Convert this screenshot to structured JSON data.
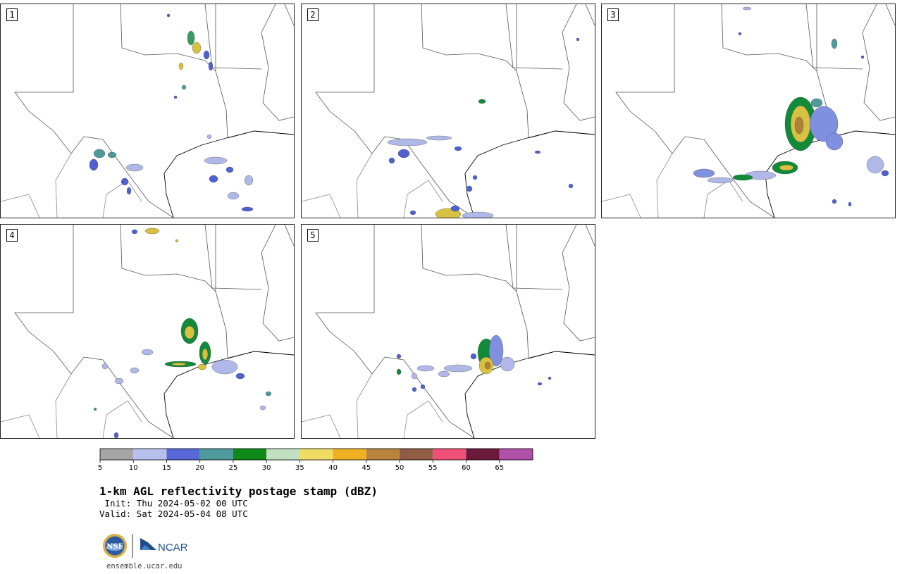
{
  "panels": [
    {
      "label": "1",
      "blobs": [
        [
          270,
          48,
          5,
          10,
          "#3a9a60"
        ],
        [
          278,
          62,
          6,
          8,
          "#d8c040"
        ],
        [
          292,
          72,
          4,
          6,
          "#5060d0"
        ],
        [
          256,
          88,
          3,
          5,
          "#d8c040"
        ],
        [
          298,
          88,
          3,
          6,
          "#5060d0"
        ],
        [
          260,
          118,
          3,
          3,
          "#4f9a98"
        ],
        [
          248,
          132,
          2,
          2,
          "#5060d0"
        ],
        [
          140,
          212,
          8,
          6,
          "#4f9a98"
        ],
        [
          132,
          228,
          6,
          8,
          "#5060d0"
        ],
        [
          158,
          214,
          6,
          4,
          "#4f9a98"
        ],
        [
          190,
          232,
          12,
          5,
          "#b0b8e8"
        ],
        [
          176,
          252,
          5,
          5,
          "#5060d0"
        ],
        [
          182,
          265,
          3,
          5,
          "#5060d0"
        ],
        [
          305,
          222,
          16,
          5,
          "#b0b8e8"
        ],
        [
          325,
          235,
          5,
          4,
          "#5060d0"
        ],
        [
          302,
          248,
          6,
          5,
          "#5060d0"
        ],
        [
          352,
          250,
          6,
          7,
          "#b0b8e8"
        ],
        [
          330,
          272,
          8,
          5,
          "#b0b8e8"
        ],
        [
          350,
          291,
          8,
          3,
          "#5060d0"
        ],
        [
          238,
          16,
          2,
          2,
          "#5060d0"
        ],
        [
          296,
          188,
          3,
          3,
          "#b0b8e8"
        ]
      ]
    },
    {
      "label": "2",
      "blobs": [
        [
          256,
          138,
          5,
          3,
          "#118a3a"
        ],
        [
          150,
          196,
          28,
          5,
          "#b0b8e8"
        ],
        [
          145,
          212,
          8,
          6,
          "#5060d0"
        ],
        [
          195,
          190,
          18,
          3,
          "#b0b8e8"
        ],
        [
          128,
          222,
          4,
          4,
          "#5060d0"
        ],
        [
          222,
          205,
          5,
          3,
          "#5060d0"
        ],
        [
          335,
          210,
          4,
          2,
          "#5060d0"
        ],
        [
          208,
          298,
          18,
          8,
          "#d8c040"
        ],
        [
          250,
          300,
          22,
          5,
          "#b0b8e8"
        ],
        [
          238,
          262,
          4,
          4,
          "#5060d0"
        ],
        [
          218,
          290,
          6,
          4,
          "#5060d0"
        ],
        [
          158,
          296,
          4,
          3,
          "#5060d0"
        ],
        [
          382,
          258,
          3,
          3,
          "#5060d0"
        ],
        [
          392,
          50,
          2,
          2,
          "#5060d0"
        ],
        [
          246,
          246,
          3,
          3,
          "#5060d0"
        ]
      ]
    },
    {
      "label": "3",
      "blobs": [
        [
          282,
          170,
          22,
          38,
          "#118a3a"
        ],
        [
          282,
          170,
          14,
          26,
          "#d8c040"
        ],
        [
          280,
          172,
          6,
          12,
          "#b0803a"
        ],
        [
          315,
          170,
          20,
          25,
          "#8090e0"
        ],
        [
          330,
          195,
          12,
          12,
          "#8090e0"
        ],
        [
          260,
          232,
          18,
          9,
          "#118a3a"
        ],
        [
          262,
          232,
          10,
          4,
          "#d8c040"
        ],
        [
          225,
          243,
          22,
          6,
          "#b0b8e8"
        ],
        [
          200,
          246,
          14,
          4,
          "#118a3a"
        ],
        [
          168,
          250,
          18,
          4,
          "#b0b8e8"
        ],
        [
          145,
          240,
          15,
          6,
          "#8090e0"
        ],
        [
          305,
          140,
          8,
          6,
          "#4f9a98"
        ],
        [
          330,
          56,
          4,
          7,
          "#4f9a98"
        ],
        [
          388,
          228,
          12,
          12,
          "#b0b8e8"
        ],
        [
          402,
          240,
          5,
          4,
          "#5060d0"
        ],
        [
          330,
          280,
          3,
          3,
          "#5060d0"
        ],
        [
          352,
          284,
          2,
          3,
          "#5060d0"
        ],
        [
          206,
          6,
          6,
          2,
          "#b0b8e8"
        ],
        [
          196,
          42,
          2,
          2,
          "#5060d0"
        ],
        [
          370,
          75,
          2,
          2,
          "#5060d0"
        ]
      ]
    },
    {
      "label": "4",
      "blobs": [
        [
          268,
          464,
          12,
          18,
          "#118a3a"
        ],
        [
          268,
          466,
          7,
          9,
          "#d8c040"
        ],
        [
          290,
          495,
          8,
          16,
          "#118a3a"
        ],
        [
          290,
          497,
          4,
          8,
          "#d8c040"
        ],
        [
          286,
          515,
          6,
          4,
          "#d8c040"
        ],
        [
          255,
          511,
          22,
          4,
          "#118a3a"
        ],
        [
          253,
          511,
          10,
          2,
          "#d8c040"
        ],
        [
          318,
          515,
          18,
          10,
          "#b0b8e8"
        ],
        [
          340,
          528,
          6,
          4,
          "#5060d0"
        ],
        [
          208,
          494,
          8,
          4,
          "#b0b8e8"
        ],
        [
          190,
          520,
          6,
          4,
          "#b0b8e8"
        ],
        [
          168,
          535,
          6,
          4,
          "#b0b8e8"
        ],
        [
          148,
          514,
          4,
          4,
          "#b0b8e8"
        ],
        [
          380,
          553,
          4,
          3,
          "#4f9a98"
        ],
        [
          372,
          573,
          4,
          3,
          "#b0b8e8"
        ],
        [
          215,
          322,
          10,
          4,
          "#d8c040"
        ],
        [
          190,
          323,
          4,
          3,
          "#5060d0"
        ],
        [
          164,
          612,
          3,
          4,
          "#5060d0"
        ],
        [
          134,
          575,
          2,
          2,
          "#4f9a98"
        ],
        [
          250,
          336,
          2,
          2,
          "#d8c040"
        ]
      ]
    },
    {
      "label": "5",
      "blobs": [
        [
          262,
          495,
          12,
          20,
          "#118a3a"
        ],
        [
          276,
          492,
          10,
          22,
          "#8090e0"
        ],
        [
          262,
          513,
          10,
          12,
          "#d8c040"
        ],
        [
          264,
          513,
          4,
          5,
          "#b0803a"
        ],
        [
          292,
          511,
          10,
          10,
          "#b0b8e8"
        ],
        [
          222,
          517,
          20,
          5,
          "#b0b8e8"
        ],
        [
          244,
          500,
          4,
          4,
          "#5060d0"
        ],
        [
          202,
          525,
          8,
          4,
          "#b0b8e8"
        ],
        [
          176,
          517,
          12,
          4,
          "#b0b8e8"
        ],
        [
          160,
          528,
          4,
          4,
          "#b0b8e8"
        ],
        [
          138,
          522,
          3,
          4,
          "#118a3a"
        ],
        [
          138,
          500,
          3,
          3,
          "#5060d0"
        ],
        [
          172,
          543,
          3,
          3,
          "#5060d0"
        ],
        [
          338,
          539,
          3,
          2,
          "#5060d0"
        ],
        [
          352,
          531,
          2,
          2,
          "#5060d0"
        ],
        [
          160,
          547,
          3,
          3,
          "#5060d0"
        ]
      ]
    }
  ],
  "colorbar": {
    "colors": [
      "#a6a6a6",
      "#b8c0ee",
      "#5868d8",
      "#4f9a9c",
      "#108a18",
      "#c0e0c0",
      "#f0dc64",
      "#f0b024",
      "#b8843c",
      "#905c44",
      "#f05078",
      "#6c1a3c",
      "#b050a8"
    ],
    "ticks": [
      "5",
      "10",
      "15",
      "20",
      "25",
      "30",
      "35",
      "40",
      "45",
      "50",
      "55",
      "60",
      "65"
    ]
  },
  "title": "1-km AGL reflectivity postage stamp (dBZ)",
  "init": " Init: Thu 2024-05-02 00 UTC",
  "valid": "Valid: Sat 2024-05-04 08 UTC",
  "logo": {
    "nsf_text": "NSF",
    "ncar_text": "NCAR"
  },
  "site": "ensemble.ucar.edu"
}
